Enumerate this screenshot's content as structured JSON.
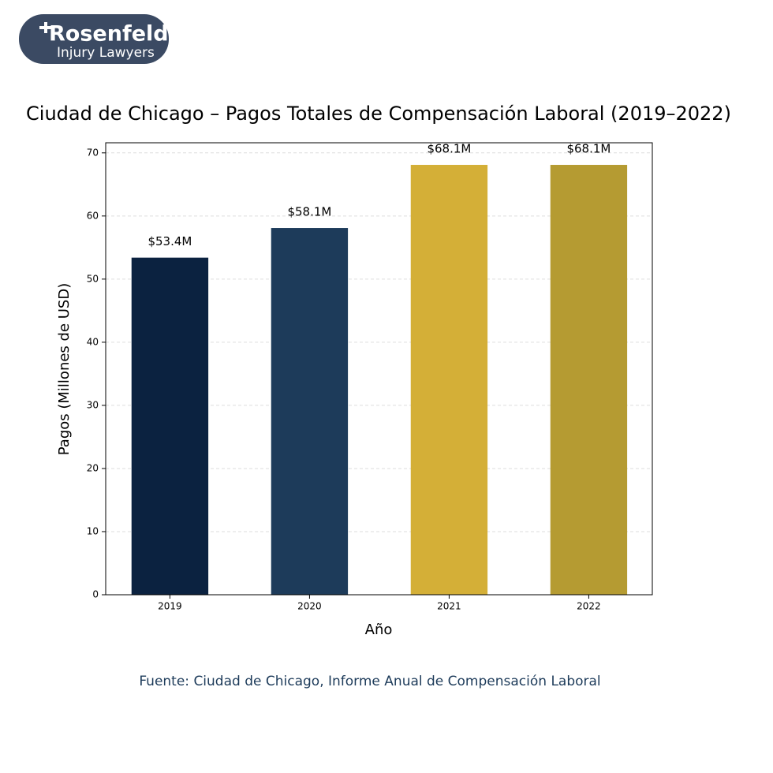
{
  "logo": {
    "name": "Rosenfeld",
    "tagline": "Injury Lawyers"
  },
  "chart_data": {
    "type": "bar",
    "title": "Ciudad de Chicago – Pagos Totales de Compensación Laboral (2019–2022)",
    "x_label": "Año",
    "y_label": "Pagos (Millones de USD)",
    "categories": [
      "2019",
      "2020",
      "2021",
      "2022"
    ],
    "values": [
      53.4,
      58.1,
      68.1,
      68.1
    ],
    "value_labels": [
      "$53.4M",
      "$58.1M",
      "$68.1M",
      "$68.1M"
    ],
    "colors": [
      "#0b2240",
      "#1d3b5a",
      "#d4af37",
      "#b59b32"
    ],
    "ylim": [
      0,
      71.6
    ],
    "yticks": [
      0,
      10,
      20,
      30,
      40,
      50,
      60,
      70
    ],
    "grid": true,
    "source": "Fuente: Ciudad de Chicago, Informe Anual de Compensación Laboral"
  }
}
